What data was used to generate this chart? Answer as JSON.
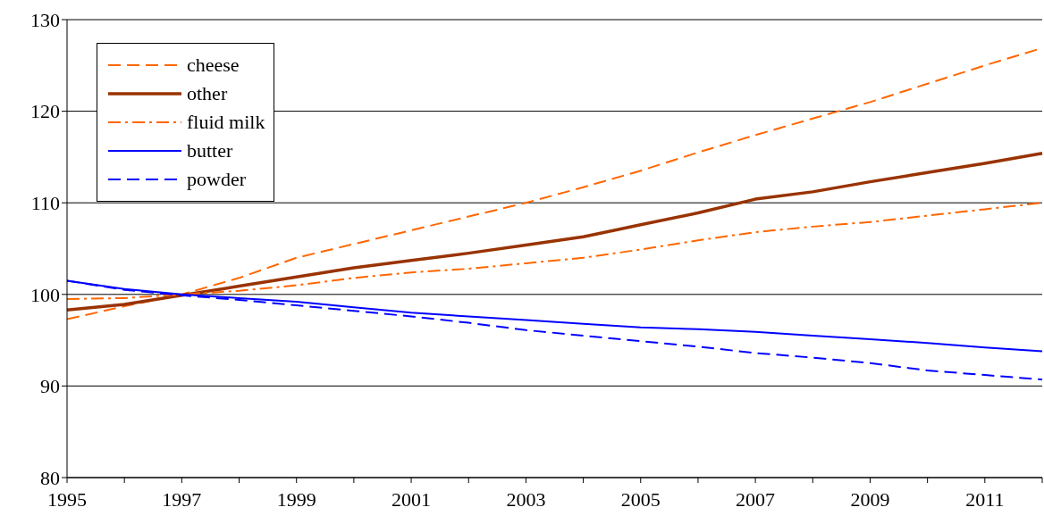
{
  "chart_data": {
    "type": "line",
    "categories": [
      "1995",
      null,
      "1997",
      null,
      "1999",
      null,
      "2001",
      null,
      "2003",
      null,
      "2005",
      null,
      "2007",
      null,
      "2009",
      null,
      "2011",
      null
    ],
    "series": [
      {
        "name": "cheese",
        "color": "#ff6600",
        "line_style": "dashed",
        "values": [
          97.3,
          98.7,
          100,
          101.8,
          104,
          105.5,
          107,
          108.5,
          110,
          111.7,
          113.5,
          115.5,
          117.4,
          119.2,
          121,
          123,
          125,
          126.9
        ]
      },
      {
        "name": "other",
        "color": "#993300",
        "line_style": "solid",
        "values": [
          98.3,
          98.9,
          99.9,
          100.9,
          101.9,
          102.9,
          103.7,
          104.5,
          105.4,
          106.3,
          107.6,
          108.9,
          110.4,
          111.2,
          112.3,
          113.3,
          114.3,
          115.4
        ]
      },
      {
        "name": "fluid milk",
        "color": "#ff6600",
        "line_style": "dashdot",
        "values": [
          99.5,
          99.6,
          100,
          100.4,
          101,
          101.8,
          102.4,
          102.8,
          103.4,
          104,
          104.9,
          105.9,
          106.8,
          107.4,
          107.9,
          108.6,
          109.3,
          110
        ]
      },
      {
        "name": "butter",
        "color": "#0000ff",
        "line_style": "solid",
        "values": [
          101.5,
          100.6,
          100,
          99.6,
          99.2,
          98.6,
          98,
          97.6,
          97.2,
          96.8,
          96.4,
          96.2,
          95.9,
          95.5,
          95.1,
          94.7,
          94.2,
          93.8
        ]
      },
      {
        "name": "powder",
        "color": "#0000ff",
        "line_style": "dashed",
        "values": [
          101.5,
          100.5,
          99.9,
          99.4,
          98.8,
          98.2,
          97.6,
          96.9,
          96.1,
          95.5,
          94.9,
          94.3,
          93.6,
          93.1,
          92.5,
          91.7,
          91.2,
          90.7
        ]
      }
    ],
    "ylim": [
      80,
      130
    ],
    "yticks": [
      80,
      90,
      100,
      110,
      120,
      130
    ],
    "grid": "y",
    "legend": "top left",
    "marker": "none"
  }
}
